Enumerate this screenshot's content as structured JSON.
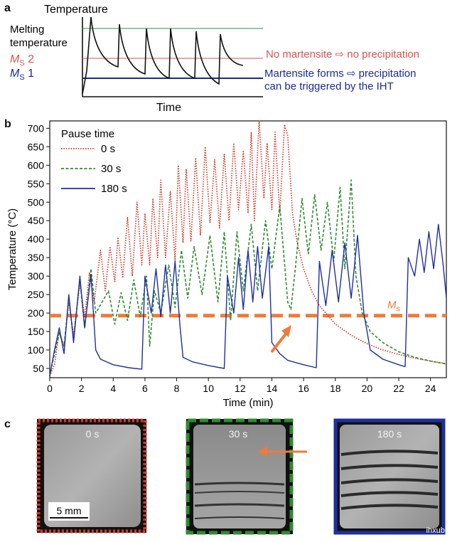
{
  "panel_a": {
    "letter": "a",
    "y_axis_label": "Temperature",
    "x_axis_label": "Time",
    "melting_label_1": "Melting",
    "melting_label_2": "temperature",
    "ms2_label_main": "M",
    "ms2_label_sub": "S",
    "ms2_label_num": " 2",
    "ms1_label_main": "M",
    "ms1_label_sub": "S",
    "ms1_label_num": " 1",
    "note_ms2": "No martensite ⇨ no precipitation",
    "note_ms1_line1": "Martensite forms ⇨ precipitation",
    "note_ms1_line2": "can be triggered by the IHT",
    "colors": {
      "melting": "#2e8b57",
      "ms2": "#d9534f",
      "ms1": "#1a2a9a",
      "trace": "#111111"
    }
  },
  "panel_b": {
    "letter": "b",
    "legend_title": "Pause time",
    "ms_label_main": "M",
    "ms_label_sub": "s",
    "colors": {
      "s0": "#d23a2a",
      "s30": "#2e8b2e",
      "s180": "#1f2fa0",
      "ms": "#f07a38",
      "arrow": "#f07a38"
    }
  },
  "chart_data": {
    "type": "line",
    "xlabel": "Time (min)",
    "ylabel": "Temperature (°C)",
    "xlim": [
      0,
      25
    ],
    "ylim": [
      25,
      720
    ],
    "x_ticks": [
      0,
      2,
      4,
      6,
      8,
      10,
      12,
      14,
      16,
      18,
      20,
      22,
      24
    ],
    "y_ticks": [
      50,
      100,
      150,
      200,
      250,
      300,
      350,
      400,
      450,
      500,
      550,
      600,
      650,
      700
    ],
    "ms_temperature": 193,
    "legend_position": "top-left",
    "series": [
      {
        "name": "0 s",
        "style": "dotted",
        "peaks": [
          [
            0.6,
            150
          ],
          [
            1.2,
            230
          ],
          [
            1.9,
            280
          ],
          [
            2.5,
            310
          ],
          [
            3.2,
            370
          ],
          [
            3.8,
            380
          ],
          [
            4.3,
            405
          ],
          [
            4.9,
            460
          ],
          [
            5.5,
            500
          ],
          [
            6.0,
            470
          ],
          [
            6.5,
            510
          ],
          [
            7.0,
            560
          ],
          [
            7.6,
            530
          ],
          [
            8.1,
            600
          ],
          [
            8.6,
            590
          ],
          [
            9.2,
            620
          ],
          [
            9.8,
            650
          ],
          [
            10.4,
            615
          ],
          [
            11.0,
            630
          ],
          [
            11.6,
            660
          ],
          [
            12.2,
            640
          ],
          [
            12.7,
            690
          ],
          [
            13.2,
            720
          ],
          [
            13.7,
            660
          ],
          [
            14.2,
            690
          ],
          [
            14.8,
            710
          ]
        ],
        "valleys": [
          [
            0.3,
            60
          ],
          [
            0.9,
            110
          ],
          [
            1.5,
            140
          ],
          [
            2.2,
            190
          ],
          [
            2.8,
            230
          ],
          [
            3.5,
            260
          ],
          [
            4.1,
            285
          ],
          [
            4.6,
            295
          ],
          [
            5.2,
            300
          ],
          [
            5.8,
            330
          ],
          [
            6.3,
            330
          ],
          [
            6.8,
            350
          ],
          [
            7.3,
            350
          ],
          [
            7.9,
            340
          ],
          [
            8.4,
            390
          ],
          [
            8.9,
            395
          ],
          [
            9.5,
            410
          ],
          [
            10.1,
            445
          ],
          [
            10.7,
            430
          ],
          [
            11.3,
            450
          ],
          [
            11.9,
            480
          ],
          [
            12.5,
            470
          ],
          [
            12.9,
            450
          ],
          [
            13.5,
            510
          ],
          [
            14.0,
            480
          ],
          [
            14.5,
            470
          ]
        ],
        "decay": [
          [
            15.0,
            680
          ],
          [
            15.3,
            470
          ],
          [
            15.6,
            390
          ],
          [
            16.0,
            320
          ],
          [
            16.5,
            260
          ],
          [
            17.0,
            220
          ],
          [
            18.0,
            170
          ],
          [
            19.0,
            140
          ],
          [
            20.0,
            117
          ],
          [
            21.0,
            100
          ],
          [
            22.0,
            88
          ],
          [
            23.0,
            78
          ],
          [
            24.0,
            70
          ],
          [
            25.0,
            63
          ]
        ]
      },
      {
        "name": "30 s",
        "style": "dashed",
        "points": [
          [
            0,
            30
          ],
          [
            0.3,
            90
          ],
          [
            0.6,
            145
          ],
          [
            0.9,
            110
          ],
          [
            1.2,
            240
          ],
          [
            1.5,
            130
          ],
          [
            1.9,
            290
          ],
          [
            2.2,
            160
          ],
          [
            2.6,
            320
          ],
          [
            2.9,
            200
          ],
          [
            3.3,
            230
          ],
          [
            3.7,
            260
          ],
          [
            4.1,
            170
          ],
          [
            4.5,
            255
          ],
          [
            4.9,
            180
          ],
          [
            5.3,
            290
          ],
          [
            5.7,
            190
          ],
          [
            6.1,
            300
          ],
          [
            6.3,
            110
          ],
          [
            6.6,
            260
          ],
          [
            7.0,
            200
          ],
          [
            7.5,
            330
          ],
          [
            7.9,
            215
          ],
          [
            8.3,
            370
          ],
          [
            8.7,
            240
          ],
          [
            9.1,
            380
          ],
          [
            9.6,
            250
          ],
          [
            10.1,
            410
          ],
          [
            10.6,
            230
          ],
          [
            11.0,
            420
          ],
          [
            11.4,
            180
          ],
          [
            11.8,
            420
          ],
          [
            12.2,
            260
          ],
          [
            12.7,
            440
          ],
          [
            13.1,
            260
          ],
          [
            13.6,
            450
          ],
          [
            14.0,
            320
          ],
          [
            14.5,
            490
          ],
          [
            15.0,
            230
          ],
          [
            15.2,
            210
          ],
          [
            15.5,
            330
          ],
          [
            15.9,
            510
          ],
          [
            16.3,
            360
          ],
          [
            16.7,
            520
          ],
          [
            17.1,
            370
          ],
          [
            17.5,
            500
          ],
          [
            17.9,
            340
          ],
          [
            18.3,
            540
          ],
          [
            18.6,
            320
          ],
          [
            19.0,
            560
          ],
          [
            19.3,
            300
          ],
          [
            19.7,
            200
          ],
          [
            20.2,
            150
          ],
          [
            21.0,
            120
          ],
          [
            22.0,
            95
          ],
          [
            23.0,
            80
          ],
          [
            24.0,
            70
          ],
          [
            25.0,
            62
          ]
        ]
      },
      {
        "name": "180 s",
        "style": "solid",
        "points": [
          [
            0,
            30
          ],
          [
            0.3,
            100
          ],
          [
            0.6,
            160
          ],
          [
            0.9,
            90
          ],
          [
            1.2,
            250
          ],
          [
            1.5,
            120
          ],
          [
            1.9,
            300
          ],
          [
            2.2,
            160
          ],
          [
            2.6,
            305
          ],
          [
            2.9,
            100
          ],
          [
            3.2,
            75
          ],
          [
            4.0,
            60
          ],
          [
            5.0,
            52
          ],
          [
            5.8,
            48
          ],
          [
            6.0,
            300
          ],
          [
            6.4,
            200
          ],
          [
            6.7,
            320
          ],
          [
            7.0,
            190
          ],
          [
            7.3,
            330
          ],
          [
            7.6,
            200
          ],
          [
            7.9,
            340
          ],
          [
            8.2,
            170
          ],
          [
            8.4,
            80
          ],
          [
            9.0,
            68
          ],
          [
            10.0,
            58
          ],
          [
            11.0,
            50
          ],
          [
            11.2,
            300
          ],
          [
            11.6,
            200
          ],
          [
            11.9,
            350
          ],
          [
            12.2,
            210
          ],
          [
            12.5,
            370
          ],
          [
            12.8,
            230
          ],
          [
            13.1,
            380
          ],
          [
            13.4,
            240
          ],
          [
            13.8,
            380
          ],
          [
            14.0,
            120
          ],
          [
            14.5,
            90
          ],
          [
            15.0,
            72
          ],
          [
            16.0,
            60
          ],
          [
            16.8,
            52
          ],
          [
            17.0,
            340
          ],
          [
            17.4,
            220
          ],
          [
            17.8,
            370
          ],
          [
            18.2,
            230
          ],
          [
            18.6,
            390
          ],
          [
            19.0,
            240
          ],
          [
            19.4,
            410
          ],
          [
            19.8,
            200
          ],
          [
            20.2,
            100
          ],
          [
            21.0,
            75
          ],
          [
            22.0,
            60
          ],
          [
            22.4,
            55
          ],
          [
            22.6,
            350
          ],
          [
            23.0,
            300
          ],
          [
            23.3,
            400
          ],
          [
            23.6,
            310
          ],
          [
            23.9,
            420
          ],
          [
            24.2,
            320
          ],
          [
            24.5,
            440
          ],
          [
            24.8,
            330
          ],
          [
            25.0,
            240
          ]
        ]
      }
    ]
  },
  "panel_c": {
    "letter": "c",
    "images": [
      {
        "label": "0 s",
        "border_color": "#d23a2a",
        "border_style": "dotted"
      },
      {
        "label": "30 s",
        "border_color": "#2e8b2e",
        "border_style": "dashed"
      },
      {
        "label": "180 s",
        "border_color": "#1f2fa0",
        "border_style": "solid"
      }
    ],
    "scale_bar": "5 mm",
    "watermark": "ihxubc.cn"
  }
}
